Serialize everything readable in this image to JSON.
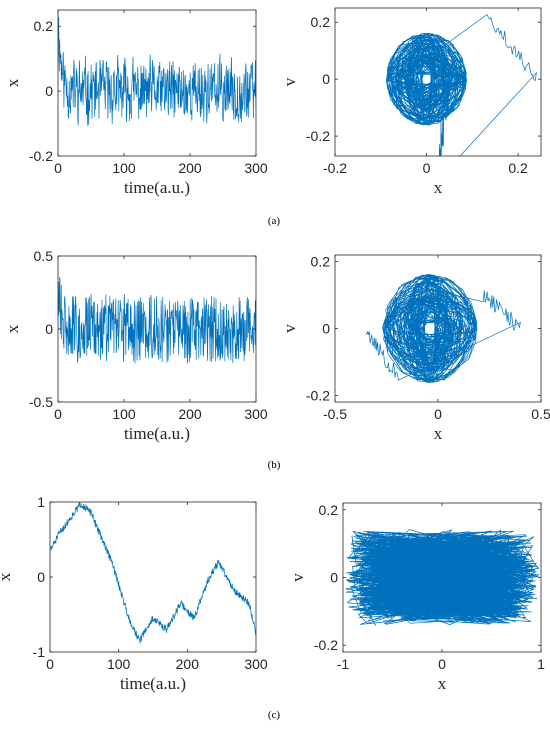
{
  "figure": {
    "panel_labels": [
      "(a)",
      "(b)",
      "(c)"
    ]
  },
  "chart_data": [
    {
      "id": "a-left",
      "type": "line",
      "xlabel": "time(a.u.)",
      "ylabel": "x",
      "xlim": [
        0,
        300
      ],
      "ylim": [
        -0.2,
        0.25
      ],
      "xticks": [
        0,
        100,
        200,
        300
      ],
      "xtick_labels": [
        "0",
        "100",
        "200",
        "300"
      ],
      "yticks": [
        -0.2,
        0,
        0.2
      ],
      "ytick_labels": [
        "-0.2",
        "0",
        "0.2"
      ],
      "series": [
        {
          "kind": "noise",
          "seed": 11,
          "n": 600,
          "start": 0.23,
          "amp": 0.07,
          "decay": 6,
          "freq_lo": 0.25,
          "freq_hi": 0.5,
          "color": "#0072BD"
        }
      ]
    },
    {
      "id": "a-right",
      "type": "line",
      "xlabel": "x",
      "ylabel": "v",
      "xlim": [
        -0.2,
        0.25
      ],
      "ylim": [
        -0.27,
        0.25
      ],
      "xticks": [
        -0.2,
        0,
        0.2
      ],
      "xtick_labels": [
        "-0.2",
        "0",
        "0.2"
      ],
      "yticks": [
        -0.2,
        0,
        0.2
      ],
      "ytick_labels": [
        "-0.2",
        "0",
        "0.2"
      ],
      "series": [
        {
          "kind": "phase",
          "seed": 21,
          "n": 1500,
          "cx": 0,
          "cy": 0,
          "rx": 0.065,
          "ry": 0.12,
          "spread": 0.4,
          "outer": [
            [
              0.24,
              0.23,
              0.05
            ],
            [
              0.05,
              -0.26,
              0.2
            ]
          ],
          "color": "#0072BD"
        }
      ]
    },
    {
      "id": "b-left",
      "type": "line",
      "xlabel": "time(a.u.)",
      "ylabel": "x",
      "xlim": [
        0,
        300
      ],
      "ylim": [
        -0.5,
        0.5
      ],
      "xticks": [
        0,
        100,
        200,
        300
      ],
      "xtick_labels": [
        "0",
        "100",
        "200",
        "300"
      ],
      "yticks": [
        -0.5,
        0,
        0.5
      ],
      "ytick_labels": [
        "-0.5",
        "0",
        "0.5"
      ],
      "series": [
        {
          "kind": "noise",
          "seed": 31,
          "n": 600,
          "start": 0.42,
          "amp": 0.15,
          "decay": 10,
          "freq_lo": 0.05,
          "freq_hi": 0.2,
          "color": "#0072BD"
        }
      ]
    },
    {
      "id": "b-right",
      "type": "line",
      "xlabel": "x",
      "ylabel": "v",
      "xlim": [
        -0.5,
        0.5
      ],
      "ylim": [
        -0.22,
        0.22
      ],
      "xticks": [
        -0.5,
        0,
        0.5
      ],
      "xtick_labels": [
        "-0.5",
        "0",
        "0.5"
      ],
      "yticks": [
        -0.2,
        0,
        0.2
      ],
      "ytick_labels": [
        "-0.2",
        "0",
        "0.2"
      ],
      "series": [
        {
          "kind": "phase",
          "seed": 41,
          "n": 1500,
          "cx": -0.04,
          "cy": 0,
          "rx": 0.17,
          "ry": 0.12,
          "spread": 0.45,
          "outer": [
            [
              0.4,
              0.1,
              0.05
            ],
            [
              -0.35,
              -0.15,
              0.05
            ]
          ],
          "color": "#0072BD"
        }
      ]
    },
    {
      "id": "c-left",
      "type": "line",
      "xlabel": "time(a.u.)",
      "ylabel": "x",
      "xlim": [
        0,
        300
      ],
      "ylim": [
        -1,
        1
      ],
      "xticks": [
        0,
        100,
        200,
        300
      ],
      "xtick_labels": [
        "0",
        "100",
        "200",
        "300"
      ],
      "yticks": [
        -1,
        0,
        1
      ],
      "ytick_labels": [
        "-1",
        "0",
        "1"
      ],
      "series": [
        {
          "kind": "trend",
          "seed": 51,
          "n": 600,
          "points": [
            [
              0,
              0.35
            ],
            [
              15,
              0.6
            ],
            [
              45,
              0.98
            ],
            [
              60,
              0.85
            ],
            [
              90,
              0.2
            ],
            [
              115,
              -0.55
            ],
            [
              130,
              -0.85
            ],
            [
              150,
              -0.55
            ],
            [
              170,
              -0.7
            ],
            [
              190,
              -0.35
            ],
            [
              210,
              -0.55
            ],
            [
              230,
              -0.05
            ],
            [
              245,
              0.2
            ],
            [
              270,
              -0.2
            ],
            [
              290,
              -0.35
            ],
            [
              300,
              -0.75
            ]
          ],
          "amp": 0.05,
          "color": "#0072BD"
        }
      ]
    },
    {
      "id": "c-right",
      "type": "line",
      "xlabel": "x",
      "ylabel": "v",
      "xlim": [
        -1,
        1
      ],
      "ylim": [
        -0.22,
        0.22
      ],
      "xticks": [
        -1,
        0,
        1
      ],
      "xtick_labels": [
        "-1",
        "0",
        "1"
      ],
      "yticks": [
        -0.2,
        0,
        0.2
      ],
      "ytick_labels": [
        "-0.2",
        "0",
        "0.2"
      ],
      "series": [
        {
          "kind": "sweep",
          "seed": 61,
          "n": 2200,
          "cx": 0,
          "cy": 0,
          "rx": 0.95,
          "ry": 0.13,
          "color": "#0072BD"
        }
      ]
    }
  ]
}
